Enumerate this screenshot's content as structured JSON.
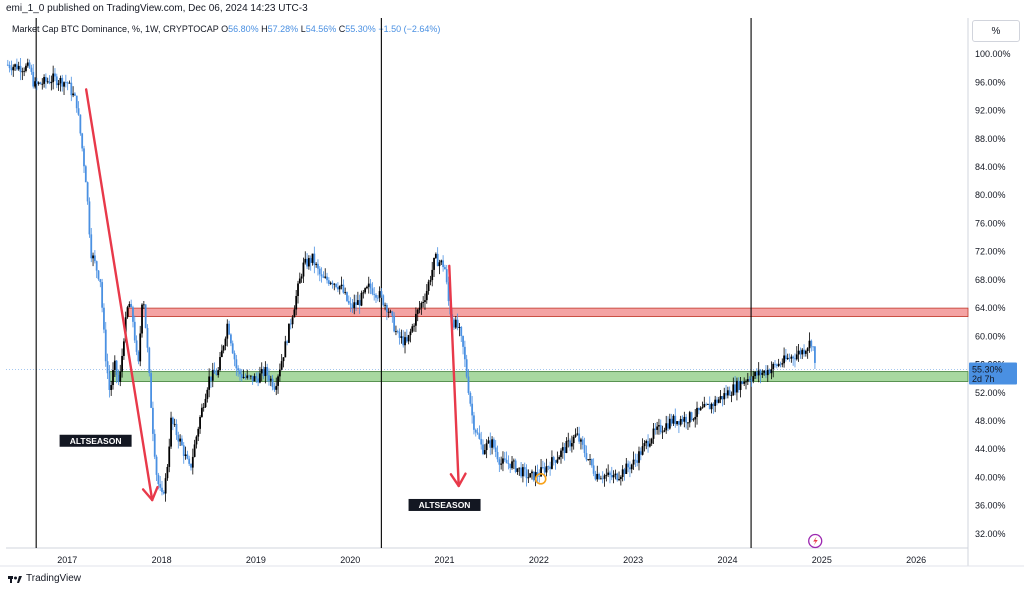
{
  "header": {
    "published": "emi_1_0 published on TradingView.com, Dec 06, 2024 14:23 UTC-3"
  },
  "legend": {
    "symbol": "Market Cap BTC Dominance, %, 1W, CRYPTOCAP",
    "o_label": "O",
    "o": "56.80%",
    "h_label": "H",
    "h": "57.28%",
    "l_label": "L",
    "l": "54.56%",
    "c_label": "C",
    "c": "55.30%",
    "change": "−1.50 (−2.64%)"
  },
  "scale_mode": "%",
  "footer": {
    "brand": "TradingView"
  },
  "colors": {
    "candle_up": "#000000",
    "candle_down": "#4a90e2",
    "resistance_zone": "#f4a3a3",
    "support_zone": "#a8d8a0",
    "arrow": "#e8394a",
    "price_label_bg": "#4a90e2",
    "marker": "#f7a21b",
    "flash_icon": "#9c27b0"
  },
  "chart_data": {
    "type": "candlestick",
    "title": "Market Cap BTC Dominance, %, 1W, CRYPTOCAP",
    "ylim": [
      30,
      102
    ],
    "xlim": [
      2016.35,
      2026.55
    ],
    "y_ticks": [
      "100.00%",
      "96.00%",
      "92.00%",
      "88.00%",
      "84.00%",
      "80.00%",
      "76.00%",
      "72.00%",
      "68.00%",
      "64.00%",
      "60.00%",
      "56.00%",
      "52.00%",
      "48.00%",
      "44.00%",
      "40.00%",
      "36.00%",
      "32.00%"
    ],
    "y_tick_values": [
      100,
      96,
      92,
      88,
      84,
      80,
      76,
      72,
      68,
      64,
      60,
      56,
      52,
      48,
      44,
      40,
      36,
      32
    ],
    "x_ticks": [
      "2017",
      "2018",
      "2019",
      "2020",
      "2021",
      "2022",
      "2023",
      "2024",
      "2025",
      "2026"
    ],
    "x_tick_values": [
      2017,
      2018,
      2019,
      2020,
      2021,
      2022,
      2023,
      2024,
      2025,
      2026
    ],
    "series": [
      {
        "name": "BTC Dominance",
        "x": [
          2016.35,
          2016.6,
          2016.65,
          2016.85,
          2017.0,
          2017.1,
          2017.2,
          2017.25,
          2017.35,
          2017.4,
          2017.45,
          2017.5,
          2017.55,
          2017.6,
          2017.65,
          2017.7,
          2017.75,
          2017.8,
          2017.85,
          2017.9,
          2017.95,
          2018.0,
          2018.05,
          2018.1,
          2018.2,
          2018.3,
          2018.4,
          2018.5,
          2018.6,
          2018.7,
          2018.8,
          2018.9,
          2019.0,
          2019.1,
          2019.2,
          2019.3,
          2019.4,
          2019.5,
          2019.6,
          2019.7,
          2019.8,
          2019.9,
          2020.0,
          2020.1,
          2020.2,
          2020.3,
          2020.4,
          2020.5,
          2020.6,
          2020.7,
          2020.8,
          2020.9,
          2021.0,
          2021.05,
          2021.1,
          2021.15,
          2021.2,
          2021.3,
          2021.4,
          2021.5,
          2021.6,
          2021.7,
          2021.8,
          2021.9,
          2022.0,
          2022.2,
          2022.4,
          2022.6,
          2022.8,
          2023.0,
          2023.2,
          2023.4,
          2023.6,
          2023.8,
          2024.0,
          2024.2,
          2024.4,
          2024.6,
          2024.8,
          2024.9,
          2024.93
        ],
        "values": [
          98.5,
          98.0,
          95.5,
          96.5,
          96.0,
          93.0,
          82.0,
          72.0,
          68.0,
          58.0,
          52.0,
          56.0,
          53.0,
          60.0,
          65.0,
          62.0,
          55.0,
          67.0,
          58.0,
          48.0,
          40.0,
          37.0,
          40.0,
          48.0,
          45.0,
          41.0,
          48.0,
          54.0,
          55.0,
          62.0,
          55.0,
          54.0,
          54.0,
          55.0,
          53.0,
          58.0,
          64.0,
          70.0,
          71.0,
          68.0,
          68.0,
          67.0,
          64.0,
          65.0,
          67.0,
          66.0,
          64.0,
          60.0,
          59.0,
          63.0,
          66.0,
          71.0,
          70.0,
          64.0,
          62.0,
          61.0,
          58.0,
          48.0,
          44.0,
          45.0,
          42.0,
          42.0,
          41.0,
          40.0,
          40.5,
          43.0,
          46.0,
          40.5,
          40.0,
          42.0,
          46.0,
          48.0,
          48.5,
          50.0,
          52.0,
          54.0,
          55.0,
          56.5,
          58.0,
          59.5,
          55.3
        ]
      }
    ],
    "zones": [
      {
        "name": "resistance",
        "from_x": 2017.65,
        "y_low": 62.8,
        "y_high": 64.0
      },
      {
        "name": "support",
        "from_x": 2017.45,
        "y_low": 53.6,
        "y_high": 55.0
      }
    ],
    "vertical_lines_x": [
      2016.67,
      2020.33,
      2024.25
    ],
    "arrows": [
      {
        "x1": 2017.2,
        "y1": 95.0,
        "x2": 2017.9,
        "y2": 36.8
      },
      {
        "x1": 2021.05,
        "y1": 70.0,
        "x2": 2021.15,
        "y2": 38.8
      }
    ],
    "annotations": [
      "ALTSEASON",
      "ALTSEASON"
    ],
    "annotation_positions": [
      {
        "x": 2017.3,
        "y": 45.2
      },
      {
        "x": 2021.0,
        "y": 36.1
      }
    ],
    "last_price": "55.30%",
    "countdown": "2d 7h",
    "ghost_label": "56.00%"
  }
}
